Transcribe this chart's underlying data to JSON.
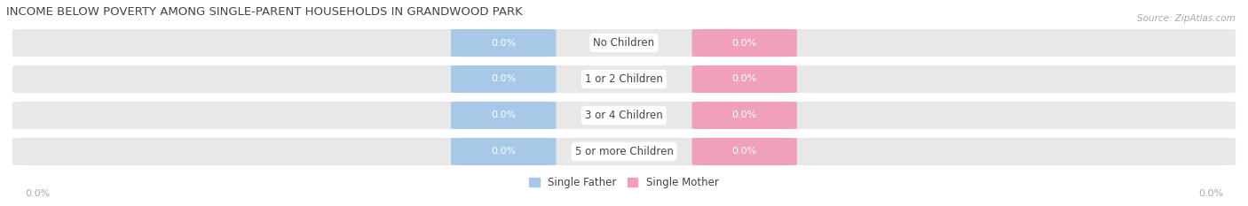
{
  "title": "INCOME BELOW POVERTY AMONG SINGLE-PARENT HOUSEHOLDS IN GRANDWOOD PARK",
  "source": "Source: ZipAtlas.com",
  "categories": [
    "No Children",
    "1 or 2 Children",
    "3 or 4 Children",
    "5 or more Children"
  ],
  "father_values": [
    0.0,
    0.0,
    0.0,
    0.0
  ],
  "mother_values": [
    0.0,
    0.0,
    0.0,
    0.0
  ],
  "father_color": "#a8c8e8",
  "mother_color": "#f0a0b8",
  "bar_bg_color": "#e8e8e8",
  "row_alt_color": "#f0f0f0",
  "center_label_color": "#444444",
  "title_color": "#444444",
  "axis_label_color": "#aaaaaa",
  "source_color": "#aaaaaa",
  "fig_width": 14.06,
  "fig_height": 2.33,
  "legend_father": "Single Father",
  "legend_mother": "Single Mother"
}
